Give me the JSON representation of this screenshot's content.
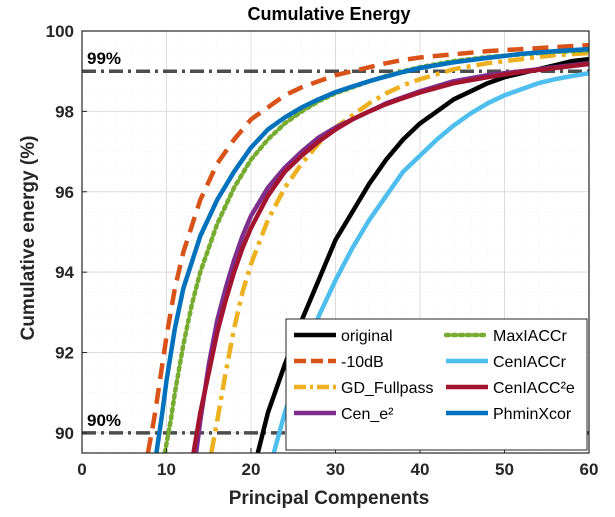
{
  "chart_data": {
    "type": "line",
    "title": "Cumulative Energy",
    "xlabel": "Principal Compenents",
    "ylabel": "Cumulative energy (%)",
    "xlim": [
      0,
      60
    ],
    "ylim": [
      89.5,
      100
    ],
    "xticks": [
      0,
      10,
      20,
      30,
      40,
      50,
      60
    ],
    "yticks": [
      90,
      92,
      94,
      96,
      98,
      100
    ],
    "grid": true,
    "legend_position": "bottom-right",
    "reference_lines": [
      {
        "label": "99%",
        "y": 99
      },
      {
        "label": "90%",
        "y": 90
      }
    ],
    "series": [
      {
        "name": "original",
        "color": "#000000",
        "dash": "solid",
        "x": [
          20.8,
          22,
          24,
          26,
          28,
          30,
          32,
          34,
          36,
          38,
          40,
          42,
          44,
          46,
          48,
          50,
          52,
          54,
          56,
          58,
          60
        ],
        "y": [
          89.5,
          90.5,
          91.7,
          92.8,
          93.8,
          94.8,
          95.5,
          96.2,
          96.8,
          97.3,
          97.7,
          98.0,
          98.3,
          98.5,
          98.7,
          98.85,
          98.95,
          99.05,
          99.15,
          99.25,
          99.3
        ]
      },
      {
        "name": "-10dB",
        "color": "#D95319",
        "dash": "dashed",
        "x": [
          7.8,
          8.5,
          9,
          10,
          11,
          12,
          14,
          16,
          18,
          20,
          22,
          24,
          26,
          28,
          30,
          32,
          34,
          36,
          38,
          40,
          44,
          48,
          52,
          56,
          60
        ],
        "y": [
          89.5,
          90.3,
          91.0,
          92.4,
          93.6,
          94.5,
          95.8,
          96.7,
          97.3,
          97.8,
          98.1,
          98.4,
          98.6,
          98.75,
          98.9,
          99.0,
          99.1,
          99.2,
          99.28,
          99.34,
          99.42,
          99.5,
          99.55,
          99.6,
          99.65
        ]
      },
      {
        "name": "GD_Fullpass",
        "color": "#EDB120",
        "dash": "dashdot",
        "x": [
          15.3,
          16,
          17,
          18,
          19,
          20,
          22,
          24,
          26,
          28,
          30,
          32,
          34,
          36,
          38,
          40,
          44,
          48,
          52,
          56,
          60
        ],
        "y": [
          89.5,
          90.3,
          91.5,
          92.6,
          93.5,
          94.2,
          95.3,
          96.1,
          96.7,
          97.2,
          97.6,
          97.9,
          98.2,
          98.45,
          98.65,
          98.8,
          99.05,
          99.2,
          99.3,
          99.4,
          99.45
        ]
      },
      {
        "name": "Cen_e²",
        "color": "#7E2F8E",
        "dash": "solid",
        "x": [
          13.5,
          14,
          15,
          16,
          17,
          18,
          19,
          20,
          22,
          24,
          26,
          28,
          30,
          32,
          34,
          36,
          38,
          40,
          44,
          48,
          52,
          56,
          60
        ],
        "y": [
          89.5,
          90.3,
          91.7,
          92.8,
          93.6,
          94.3,
          94.9,
          95.4,
          96.1,
          96.6,
          97.0,
          97.35,
          97.6,
          97.8,
          98.0,
          98.2,
          98.35,
          98.5,
          98.75,
          98.9,
          99.0,
          99.1,
          99.2
        ]
      },
      {
        "name": "MaxIACCr",
        "color": "#77AC30",
        "dash": "dotted",
        "x": [
          9.8,
          10.5,
          11,
          12,
          13,
          14,
          16,
          18,
          20,
          22,
          24,
          26,
          28,
          30,
          32,
          34,
          36,
          38,
          40,
          44,
          48,
          52,
          56,
          60
        ],
        "y": [
          89.5,
          90.3,
          91.0,
          92.2,
          93.2,
          94.0,
          95.2,
          96.1,
          96.8,
          97.3,
          97.7,
          98.0,
          98.25,
          98.45,
          98.6,
          98.75,
          98.88,
          99.0,
          99.1,
          99.25,
          99.35,
          99.42,
          99.48,
          99.52
        ]
      },
      {
        "name": "CenIACCr",
        "color": "#4DBEEE",
        "dash": "solid",
        "x": [
          22.7,
          24,
          26,
          28,
          30,
          32,
          34,
          36,
          38,
          40,
          42,
          44,
          46,
          48,
          50,
          52,
          54,
          56,
          58,
          60
        ],
        "y": [
          89.5,
          90.5,
          91.8,
          92.9,
          93.8,
          94.6,
          95.3,
          95.9,
          96.5,
          96.9,
          97.3,
          97.65,
          97.95,
          98.2,
          98.4,
          98.55,
          98.7,
          98.8,
          98.88,
          98.95
        ]
      },
      {
        "name": "CenIACC²e",
        "color": "#A2142F",
        "dash": "solid",
        "x": [
          13.2,
          14,
          15,
          16,
          17,
          18,
          19,
          20,
          22,
          24,
          26,
          28,
          30,
          32,
          34,
          36,
          38,
          40,
          44,
          48,
          52,
          56,
          60
        ],
        "y": [
          89.5,
          90.5,
          91.5,
          92.5,
          93.3,
          94.0,
          94.6,
          95.1,
          95.9,
          96.5,
          96.9,
          97.25,
          97.55,
          97.8,
          98.0,
          98.18,
          98.33,
          98.47,
          98.7,
          98.85,
          98.98,
          99.08,
          99.18
        ]
      },
      {
        "name": "PhminXcor",
        "color": "#0072BD",
        "dash": "solid",
        "x": [
          8.8,
          9.5,
          10,
          11,
          12,
          14,
          16,
          18,
          20,
          22,
          24,
          26,
          28,
          30,
          32,
          34,
          36,
          38,
          40,
          44,
          48,
          52,
          56,
          60
        ],
        "y": [
          89.5,
          90.5,
          91.3,
          92.6,
          93.6,
          94.9,
          95.8,
          96.5,
          97.1,
          97.55,
          97.85,
          98.1,
          98.3,
          98.48,
          98.62,
          98.75,
          98.87,
          98.98,
          99.08,
          99.22,
          99.33,
          99.43,
          99.5,
          99.55
        ]
      }
    ]
  }
}
